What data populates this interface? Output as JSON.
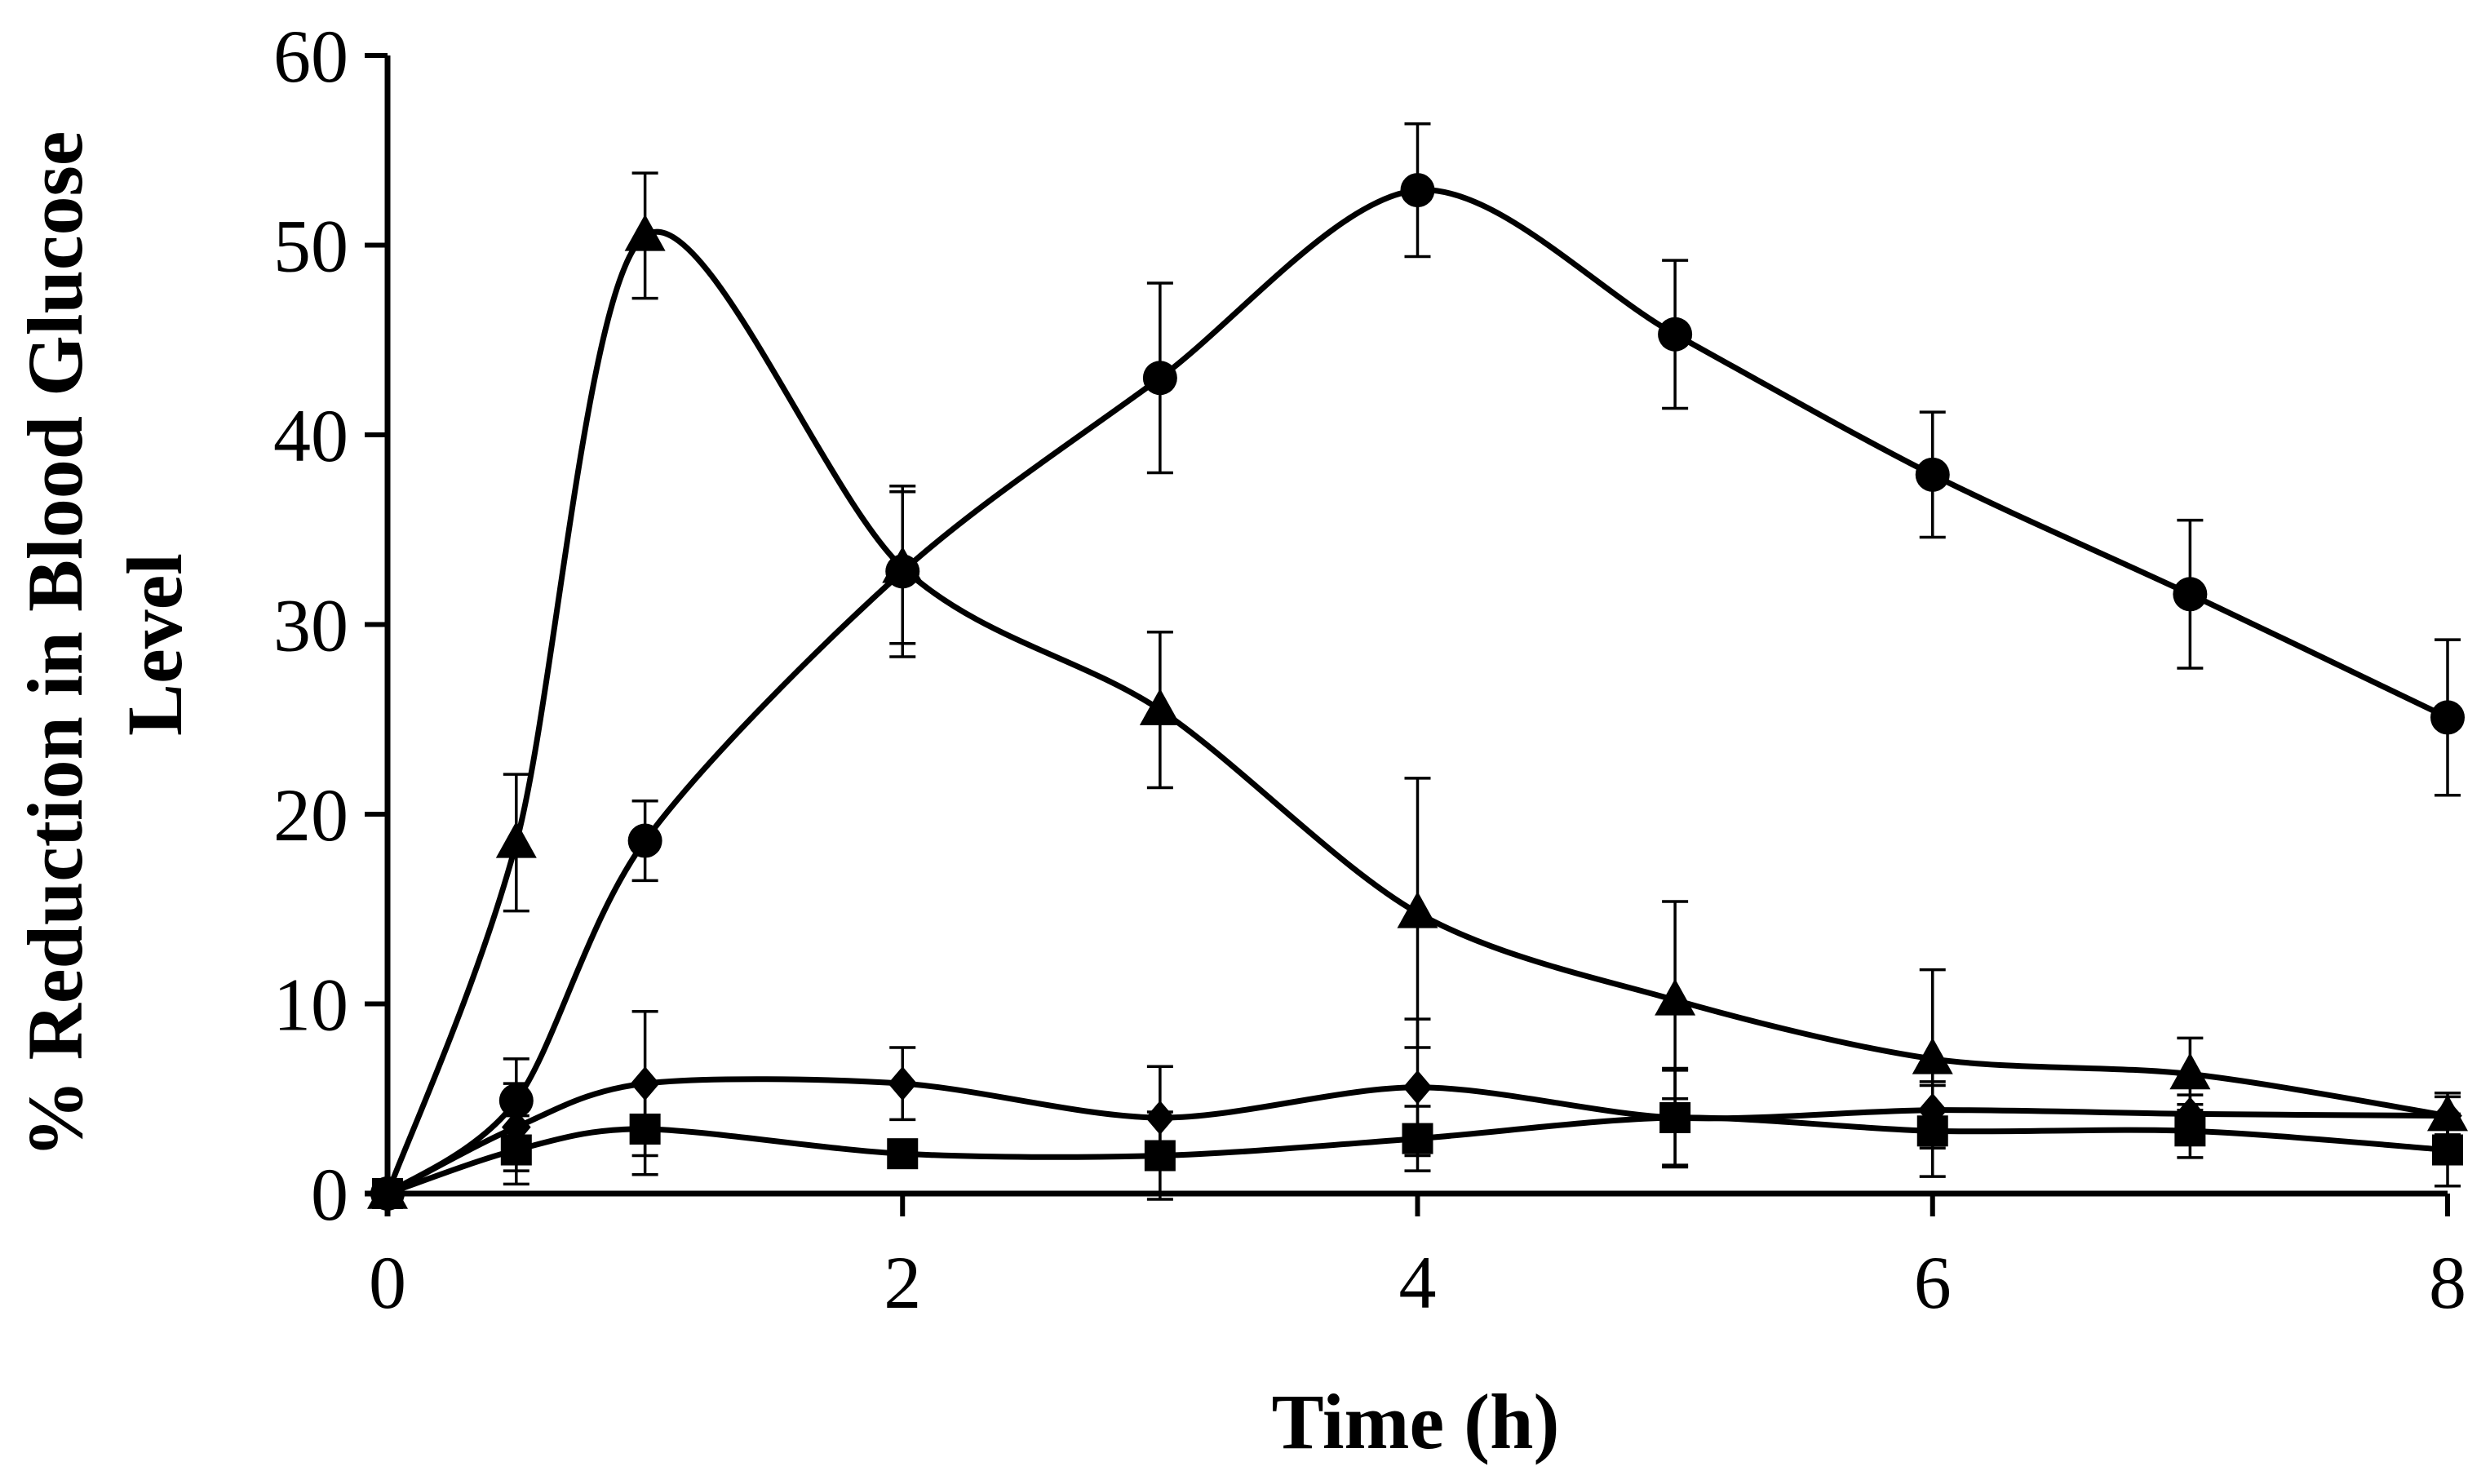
{
  "chart_data": {
    "type": "line",
    "title": "",
    "xlabel": "Time (h)",
    "ylabel_line1": "% Reduction in Blood Glucose",
    "ylabel_line2": "Level",
    "xlim": [
      0,
      8
    ],
    "ylim": [
      0,
      60
    ],
    "xticks": [
      0,
      2,
      4,
      6,
      8
    ],
    "yticks": [
      0,
      10,
      20,
      30,
      40,
      50,
      60
    ],
    "grid": false,
    "legend": "none",
    "series": [
      {
        "name": "circle",
        "marker": "circle",
        "x": [
          0,
          0.5,
          1,
          2,
          3,
          4,
          5,
          6,
          7,
          8
        ],
        "y": [
          0,
          4.9,
          18.6,
          32.8,
          43.0,
          52.9,
          45.3,
          37.9,
          31.6,
          25.1
        ],
        "err": [
          0,
          2.2,
          2.1,
          4.5,
          5.0,
          3.5,
          3.9,
          3.3,
          3.9,
          4.1
        ]
      },
      {
        "name": "triangle",
        "marker": "triangle",
        "x": [
          0,
          0.5,
          1,
          2,
          3,
          4,
          5,
          6,
          7,
          8
        ],
        "y": [
          0,
          18.5,
          50.5,
          33.0,
          25.5,
          14.8,
          10.2,
          7.1,
          6.3,
          4.1
        ],
        "err": [
          0,
          3.6,
          3.3,
          4.0,
          4.1,
          7.1,
          5.2,
          4.7,
          1.9,
          1.2
        ]
      },
      {
        "name": "diamond",
        "marker": "diamond",
        "x": [
          0,
          0.5,
          1,
          2,
          3,
          4,
          5,
          6,
          7,
          8
        ],
        "y": [
          0,
          3.5,
          5.8,
          5.8,
          4.0,
          5.6,
          4.0,
          4.4,
          4.2,
          4.1
        ],
        "err": [
          0,
          2.3,
          3.8,
          1.9,
          2.7,
          3.6,
          2.6,
          1.5,
          1.0,
          1.0
        ]
      },
      {
        "name": "square",
        "marker": "square",
        "x": [
          0,
          0.5,
          1,
          2,
          3,
          4,
          5,
          6,
          7,
          8
        ],
        "y": [
          0,
          2.3,
          3.4,
          2.1,
          2.0,
          2.9,
          4.0,
          3.3,
          3.3,
          2.3
        ],
        "err": [
          0,
          1.8,
          2.4,
          0.5,
          2.3,
          1.7,
          2.5,
          2.4,
          1.4,
          1.9
        ]
      }
    ]
  }
}
